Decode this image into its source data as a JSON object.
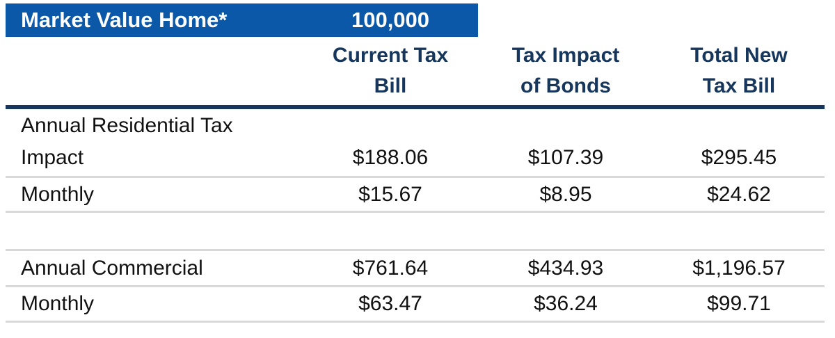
{
  "chart_data": {
    "type": "table",
    "title": "Market Value Home*",
    "market_value": "100,000",
    "column_headers": [
      "Current Tax\nBill",
      "Tax Impact\nof Bonds",
      "Total New\nTax Bill"
    ],
    "rows": [
      {
        "label": "Annual Residential Tax\nImpact",
        "values": [
          "$188.06",
          "$107.39",
          "$295.45"
        ]
      },
      {
        "label": "Monthly",
        "values": [
          "$15.67",
          "$8.95",
          "$24.62"
        ]
      },
      {
        "label": "Annual Commercial",
        "values": [
          "$761.64",
          "$434.93",
          "$1,196.57"
        ]
      },
      {
        "label": "Monthly",
        "values": [
          "$63.47",
          "$36.24",
          "$99.71"
        ]
      }
    ]
  },
  "colors": {
    "bar-blue": "#0B58A8",
    "navy": "#16365C",
    "line-gray": "#D9D9D9",
    "text-dark": "#111111"
  }
}
